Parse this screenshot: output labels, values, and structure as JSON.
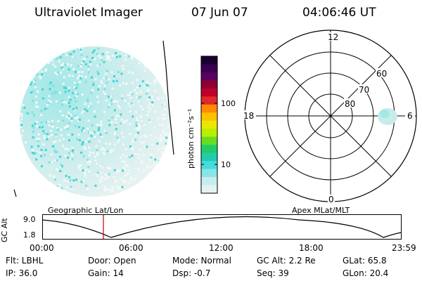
{
  "header": {
    "instrument": "Ultraviolet Imager",
    "date": "07 Jun 07",
    "time": "04:06:46 UT"
  },
  "colorbar": {
    "unit_label": "photon cm⁻²s⁻¹",
    "ticks": [
      "100",
      "10"
    ],
    "colors": [
      "#1a0030",
      "#3a0050",
      "#5a0060",
      "#8b0030",
      "#c0002a",
      "#e02a2a",
      "#ff8a00",
      "#ffc000",
      "#e8e800",
      "#b8ee00",
      "#66dd22",
      "#22cc66",
      "#22ccaa",
      "#44dddd",
      "#88e6e6",
      "#c6eeee",
      "#e4f2f2"
    ]
  },
  "polar_plot": {
    "mlt_labels": [
      "12",
      "18",
      "6",
      "0"
    ],
    "mlat_labels": [
      "60",
      "70",
      "80"
    ]
  },
  "timeline": {
    "left_title": "Geographic Lat/Lon",
    "right_title": "Apex MLat/MLT",
    "axis_label": "GC Alt",
    "y_ticks": [
      "9.0",
      "1.8"
    ],
    "x_ticks": [
      "00:00",
      "06:00",
      "12:00",
      "18:00",
      "23:59"
    ]
  },
  "status": {
    "flt": "Flt: LBHL",
    "ip": "IP: 36.0",
    "door": "Door: Open",
    "gain": "Gain: 14",
    "mode": "Mode: Normal",
    "dsp": "Dsp:   -0.7",
    "gc_alt": "GC Alt: 2.2 Re",
    "seq": "Seq: 39",
    "glat": "GLat:   65.8",
    "glon": "GLon:   20.4"
  }
}
